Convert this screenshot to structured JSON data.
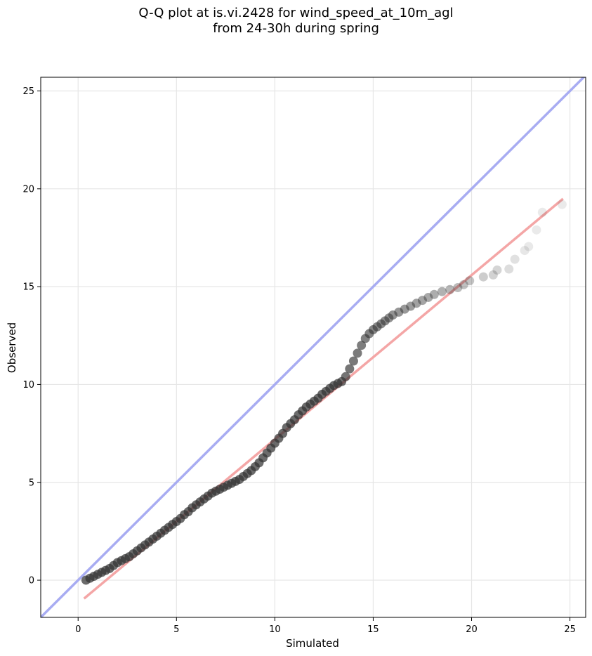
{
  "chart_data": {
    "type": "scatter",
    "title": "Q-Q plot at is.vi.2428 for wind_speed_at_10m_agl",
    "subtitle": "from 24-30h during spring",
    "xlabel": "Simulated",
    "ylabel": "Observed",
    "xlim": [
      -1.9,
      25.8
    ],
    "ylim": [
      -1.9,
      25.7
    ],
    "x_ticks": [
      0,
      5,
      10,
      15,
      20,
      25
    ],
    "y_ticks": [
      0,
      5,
      10,
      15,
      20,
      25
    ],
    "grid": true,
    "lines": [
      {
        "role": "identity",
        "color": "#a8acf2",
        "x": [
          -1.9,
          25.8
        ],
        "y": [
          -1.9,
          25.8
        ]
      },
      {
        "role": "regression",
        "color": "#f4a6a6",
        "x": [
          0.35,
          24.6
        ],
        "y": [
          -0.9,
          19.45
        ]
      }
    ],
    "point_color": "#333333",
    "points": {
      "x": [
        0.4,
        0.6,
        0.8,
        1.0,
        1.2,
        1.4,
        1.6,
        1.8,
        2.0,
        2.2,
        2.4,
        2.6,
        2.8,
        3.0,
        3.2,
        3.4,
        3.6,
        3.8,
        4.0,
        4.2,
        4.4,
        4.6,
        4.8,
        5.0,
        5.2,
        5.4,
        5.6,
        5.8,
        6.0,
        6.2,
        6.4,
        6.6,
        6.8,
        7.0,
        7.2,
        7.4,
        7.6,
        7.8,
        8.0,
        8.2,
        8.4,
        8.6,
        8.8,
        9.0,
        9.2,
        9.4,
        9.6,
        9.8,
        10.0,
        10.2,
        10.4,
        10.6,
        10.8,
        11.0,
        11.2,
        11.4,
        11.6,
        11.8,
        12.0,
        12.2,
        12.4,
        12.6,
        12.8,
        13.0,
        13.2,
        13.4,
        13.6,
        13.8,
        14.0,
        14.2,
        14.4,
        14.6,
        14.8,
        15.0,
        15.2,
        15.4,
        15.6,
        15.8,
        16.0,
        16.3,
        16.6,
        16.9,
        17.2,
        17.5,
        17.8,
        18.1,
        18.5,
        18.9,
        19.3,
        19.6,
        19.9,
        20.6,
        21.1,
        21.3,
        21.9,
        22.2,
        22.7,
        22.9,
        23.3,
        23.6,
        24.6
      ],
      "y": [
        0.0,
        0.1,
        0.2,
        0.3,
        0.4,
        0.5,
        0.6,
        0.75,
        0.9,
        1.0,
        1.1,
        1.2,
        1.35,
        1.5,
        1.65,
        1.8,
        1.95,
        2.1,
        2.25,
        2.4,
        2.55,
        2.7,
        2.85,
        3.0,
        3.15,
        3.35,
        3.5,
        3.7,
        3.85,
        4.0,
        4.15,
        4.3,
        4.45,
        4.55,
        4.65,
        4.75,
        4.85,
        4.95,
        5.05,
        5.15,
        5.3,
        5.45,
        5.6,
        5.8,
        6.0,
        6.25,
        6.5,
        6.75,
        7.0,
        7.25,
        7.5,
        7.8,
        8.0,
        8.2,
        8.45,
        8.65,
        8.85,
        9.0,
        9.15,
        9.3,
        9.5,
        9.65,
        9.8,
        9.95,
        10.05,
        10.15,
        10.4,
        10.8,
        11.2,
        11.6,
        12.0,
        12.35,
        12.6,
        12.8,
        12.95,
        13.1,
        13.25,
        13.4,
        13.55,
        13.7,
        13.85,
        14.0,
        14.15,
        14.3,
        14.45,
        14.6,
        14.75,
        14.85,
        14.95,
        15.1,
        15.3,
        15.5,
        15.6,
        15.85,
        15.9,
        16.4,
        16.85,
        17.05,
        17.9,
        18.8,
        19.2
      ]
    }
  }
}
